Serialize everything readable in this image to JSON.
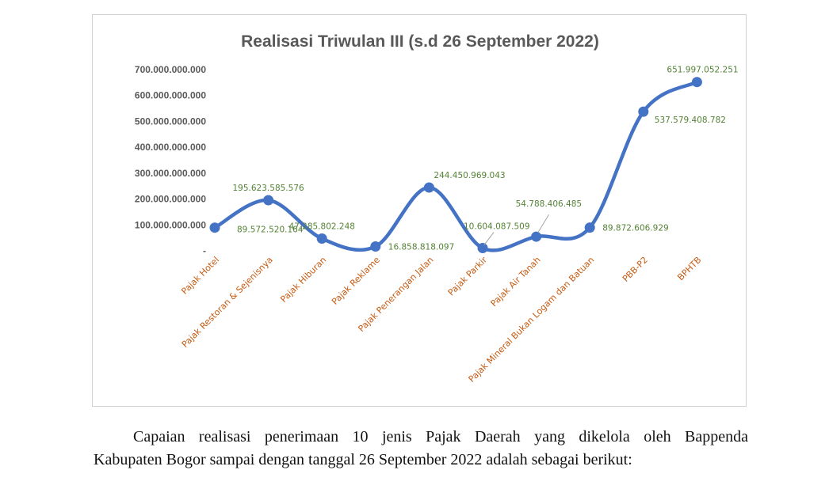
{
  "chart_data": {
    "type": "line",
    "title": "Realisasi Triwulan III (s.d 26 September 2022)",
    "categories": [
      "Pajak Hotel",
      "Pajak Restoran & Sejenisnya",
      "Pajak Hiburan",
      "Pajak Reklame",
      "Pajak Penerangan Jalan",
      "Pajak Parkir",
      "Pajak Air Tanah",
      "Pajak Mineral Bukan Logam dan Batuan",
      "PBB-P2",
      "BPHTB"
    ],
    "values": [
      89572520164,
      195623585576,
      47285802248,
      16858818097,
      244450969043,
      10604087509,
      54788406485,
      89872606929,
      537579408782,
      651997052251
    ],
    "data_labels": [
      "89.572.520.164",
      "195.623.585.576",
      "47.285.802.248",
      "16.858.818.097",
      "244.450.969.043",
      "10.604.087.509",
      "54.788.406.485",
      "89.872.606.929",
      "537.579.408.782",
      "651.997.052.251"
    ],
    "ylim": [
      0,
      700000000000
    ],
    "yticks": [
      0,
      100000000000,
      200000000000,
      300000000000,
      400000000000,
      500000000000,
      600000000000,
      700000000000
    ],
    "ytick_labels": [
      "-",
      "100.000.000.000",
      "200.000.000.000",
      "300.000.000.000",
      "400.000.000.000",
      "500.000.000.000",
      "600.000.000.000",
      "700.000.000.000"
    ],
    "smooth": true,
    "grid": false,
    "line_color": "#4472c4",
    "xtick_color": "#c55a11",
    "label_color": "#548235"
  },
  "paragraph": {
    "line1": "Capaian realisasi penerimaan 10 jenis Pajak Daerah yang dikelola oleh Bappenda",
    "line2": "Kabupaten Bogor sampai dengan tanggal 26 September 2022 adalah sebagai berikut:"
  }
}
